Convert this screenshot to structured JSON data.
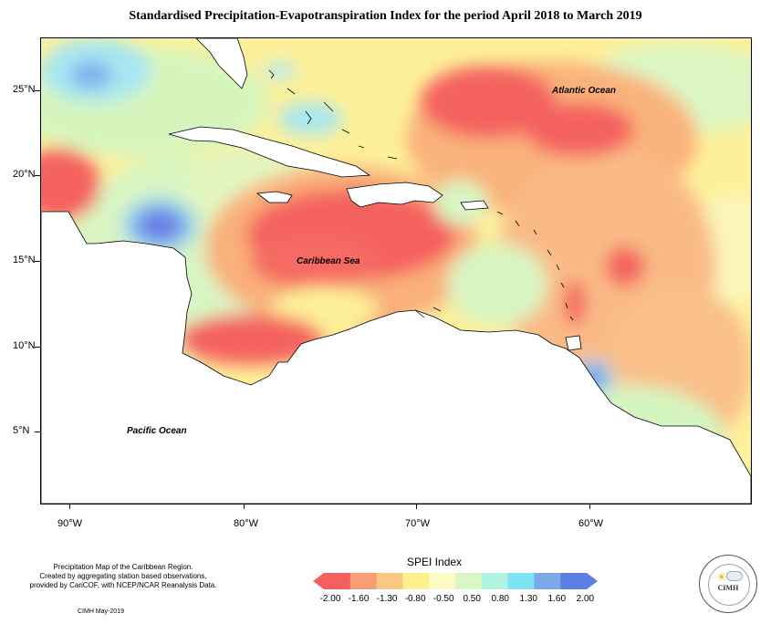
{
  "title": "Standardised Precipitation-Evapotranspiration Index for the period April 2018 to March 2019",
  "axes": {
    "y_labels": [
      "25°N",
      "20°N",
      "15°N",
      "10°N",
      "5°N"
    ],
    "x_labels": [
      "90°W",
      "80°W",
      "70°W",
      "60°W"
    ]
  },
  "map_labels": {
    "atlantic": "Atlantic Ocean",
    "caribbean": "Caribbean Sea",
    "pacific": "Pacific Ocean"
  },
  "legend": {
    "title": "SPEI Index",
    "ticks": [
      "-2.00",
      "-1.60",
      "-1.30",
      "-0.80",
      "-0.50",
      "0.50",
      "0.80",
      "1.30",
      "1.60",
      "2.00"
    ],
    "colors": [
      "#f4605f",
      "#f79e74",
      "#fbc883",
      "#fdf08f",
      "#fbfbc3",
      "#d8f7c4",
      "#aff3e0",
      "#7ee3f3",
      "#7aa8e8",
      "#5d7fe3"
    ]
  },
  "credit": {
    "line1": "Precipitation Map of the Caribbean Region.",
    "line2": "Created by aggregating station based observations,",
    "line3": "provided by CariCOF, with NCEP/NCAR Reanalysis Data.",
    "date": "CIMH May-2019"
  },
  "logo": {
    "name": "CIMH"
  }
}
